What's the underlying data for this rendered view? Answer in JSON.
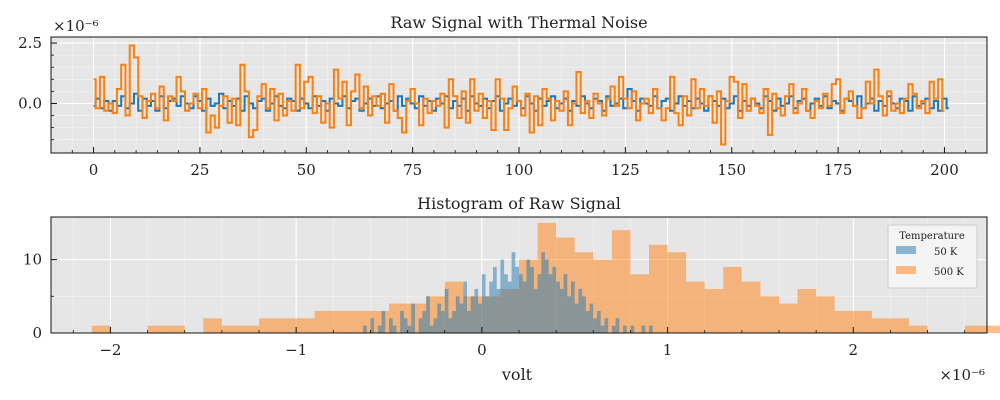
{
  "chart_data": [
    {
      "type": "line",
      "title": "Raw Signal with Thermal Noise",
      "xlabel": "",
      "ylabel": "",
      "xlim": [
        -10,
        210
      ],
      "ylim": [
        -2.05,
        2.75
      ],
      "offset_text": "×10⁻⁶",
      "xticks": [
        0,
        25,
        50,
        75,
        100,
        125,
        150,
        175,
        200
      ],
      "xtick_labels": [
        "0",
        "25",
        "50",
        "75",
        "100",
        "125",
        "150",
        "175",
        "200"
      ],
      "yticks": [
        0.0,
        2.5
      ],
      "ytick_labels": [
        "0.0",
        "2.5"
      ],
      "grid": true,
      "drawstyle": "steps-mid",
      "series": [
        {
          "color": "#1f77b4",
          "values": [
            -0.1,
            0.2,
            -0.2,
            0.1,
            -0.3,
            0.1,
            -0.1,
            0.3,
            -0.2,
            0.0,
            0.4,
            -0.3,
            0.2,
            -0.1,
            0.1,
            -0.3,
            0.3,
            -0.2,
            0.1,
            0.2,
            -0.1,
            0.3,
            0.0,
            -0.2,
            0.3,
            0.1,
            -0.3,
            0.2,
            -0.1,
            0.0,
            0.4,
            -0.2,
            0.1,
            -0.1,
            0.2,
            -0.3,
            0.3,
            0.0,
            -0.2,
            0.1,
            0.2,
            -0.3,
            0.0,
            0.3,
            -0.1,
            -0.2,
            0.2,
            0.1,
            -0.3,
            0.2,
            0.0,
            -0.2,
            0.3,
            -0.1,
            0.1,
            -0.3,
            0.2,
            0.0,
            -0.1,
            0.3,
            -0.2,
            0.1,
            0.2,
            -0.3,
            0.0,
            0.2,
            -0.1,
            0.3,
            -0.2,
            0.0,
            0.1,
            -0.3,
            0.3,
            -0.1,
            0.2,
            0.0,
            -0.2,
            0.3,
            -0.1,
            0.1,
            -0.3,
            0.2,
            0.0,
            0.3,
            -0.2,
            0.1,
            -0.1,
            0.2,
            -0.3,
            0.3,
            0.0,
            -0.1,
            0.2,
            -0.2,
            0.1,
            0.3,
            -0.3,
            0.0,
            0.2,
            -0.1,
            0.1,
            -0.2,
            0.3,
            0.0,
            -0.3,
            0.2,
            -0.1,
            0.1,
            0.3,
            -0.2,
            0.0,
            0.2,
            -0.3,
            0.1,
            -0.1,
            0.3,
            0.0,
            -0.2,
            0.2,
            0.1,
            -0.3,
            0.3,
            -0.1,
            0.0,
            0.2,
            -0.2,
            0.6,
            0.1,
            -0.3,
            0.2,
            0.0,
            -0.1,
            0.3,
            -0.2,
            0.1,
            0.2,
            -0.3,
            0.0,
            0.3,
            -0.1,
            0.1,
            -0.2,
            0.2,
            0.0,
            -0.3,
            0.3,
            0.1,
            -0.1,
            0.2,
            -0.2,
            0.0,
            0.3,
            -0.3,
            0.1,
            -0.1,
            0.2,
            0.0,
            -0.2,
            0.3,
            0.1,
            -0.3,
            0.2,
            -0.1,
            0.0,
            0.3,
            -0.2,
            0.1,
            0.2,
            -0.3,
            0.0,
            0.2,
            -0.1,
            0.3,
            -0.2,
            0.1,
            0.0,
            -0.3,
            0.2,
            0.1,
            -0.1,
            0.3,
            -0.2,
            0.0,
            0.2,
            -0.3,
            0.1,
            -0.1,
            0.3,
            0.0,
            -0.2,
            0.2,
            0.1,
            -0.3,
            0.3,
            -0.1,
            0.0,
            0.2,
            -0.2,
            0.1,
            -0.3,
            0.2,
            -0.2
          ]
        },
        {
          "color": "#ff7f0e",
          "values": [
            1.0,
            -0.2,
            1.1,
            -0.3,
            0.0,
            -0.4,
            0.6,
            1.6,
            -0.5,
            2.4,
            1.9,
            0.3,
            -0.6,
            0.1,
            0.4,
            -0.2,
            0.7,
            -0.7,
            0.3,
            0.1,
            1.1,
            0.5,
            -0.3,
            0.0,
            0.4,
            -0.2,
            0.6,
            -1.2,
            -0.5,
            -1.0,
            -0.1,
            0.3,
            -0.8,
            0.2,
            -0.9,
            1.6,
            0.5,
            -1.4,
            -1.1,
            0.3,
            0.8,
            -0.2,
            0.6,
            -0.7,
            0.4,
            -0.5,
            0.1,
            -0.3,
            1.6,
            -0.2,
            0.9,
            1.1,
            -0.4,
            0.3,
            -0.8,
            0.0,
            -1.0,
            1.4,
            0.2,
            0.9,
            -0.9,
            0.5,
            1.2,
            -0.2,
            0.7,
            -0.5,
            0.3,
            -0.1,
            0.4,
            -0.8,
            0.8,
            -0.3,
            -0.6,
            -1.2,
            0.1,
            0.6,
            0.0,
            -0.9,
            0.2,
            -0.4,
            0.1,
            -0.1,
            0.4,
            -1.0,
            1.0,
            0.3,
            -0.6,
            0.5,
            -0.8,
            1.0,
            -0.3,
            0.4,
            -0.6,
            0.1,
            -1.1,
            1.0,
            0.2,
            -1.1,
            -0.2,
            0.7,
            0.1,
            -0.5,
            0.4,
            -1.2,
            0.3,
            -0.9,
            0.6,
            0.2,
            -0.7,
            0.1,
            -0.3,
            0.5,
            -0.9,
            0.0,
            1.3,
            -0.4,
            0.1,
            -0.6,
            0.4,
            0.0,
            -0.5,
            0.2,
            0.7,
            -0.1,
            1.1,
            0.2,
            -0.2,
            0.5,
            -0.7,
            0.0,
            0.2,
            -0.4,
            0.6,
            -0.2,
            -0.7,
            -0.2,
            1.1,
            -0.4,
            -0.9,
            0.3,
            -0.5,
            1.0,
            -0.2,
            0.6,
            -0.1,
            0.3,
            -0.8,
            0.5,
            -1.7,
            0.1,
            1.1,
            0.9,
            -0.6,
            0.8,
            -0.3,
            0.2,
            -0.1,
            -0.4,
            0.6,
            -1.3,
            0.4,
            -0.2,
            -0.5,
            0.3,
            0.8,
            -0.4,
            0.0,
            0.6,
            -0.3,
            -0.6,
            0.1,
            -0.2,
            0.4,
            -0.1,
            0.8,
            1.0,
            -0.4,
            0.2,
            0.5,
            -0.1,
            -0.6,
            -0.2,
            0.9,
            0.0,
            1.4,
            0.3,
            -0.5,
            0.5,
            -0.3,
            0.0,
            -0.4,
            0.2,
            0.8,
            0.4,
            -0.2,
            0.1,
            -0.4,
            0.9,
            0.2,
            1.0,
            -0.3
          ]
        }
      ]
    },
    {
      "type": "bar",
      "title": "Histogram of Raw Signal",
      "xlabel": "volt",
      "ylabel": "",
      "xlim": [
        -2.32,
        2.72
      ],
      "ylim": [
        0,
        15.8
      ],
      "offset_text": "×10⁻⁶",
      "xticks": [
        -2,
        -1,
        0,
        1,
        2
      ],
      "xtick_labels": [
        "−2",
        "−1",
        "0",
        "1",
        "2"
      ],
      "yticks": [
        0,
        10
      ],
      "ytick_labels": [
        "0",
        "10"
      ],
      "grid": true,
      "legend": {
        "title": "Temperature",
        "placement": "right"
      },
      "series": [
        {
          "name": "50 K",
          "color": "#1f77b4",
          "alpha": 0.5,
          "bin_width": 0.02,
          "bin_start": -0.64,
          "counts": [
            1,
            0,
            2,
            0,
            1,
            3,
            0,
            2,
            1,
            0,
            3,
            2,
            1,
            4,
            0,
            2,
            3,
            5,
            1,
            2,
            4,
            3,
            6,
            2,
            3,
            5,
            4,
            7,
            3,
            5,
            6,
            4,
            8,
            5,
            7,
            9,
            6,
            10,
            8,
            7,
            11,
            9,
            8,
            7,
            10,
            9,
            6,
            8,
            11,
            10,
            8,
            9,
            7,
            6,
            8,
            5,
            7,
            4,
            6,
            5,
            3,
            4,
            2,
            3,
            1,
            2,
            0,
            1,
            2,
            0,
            1,
            0,
            1,
            0,
            0,
            1,
            0,
            1,
            0,
            0
          ]
        },
        {
          "name": "500 K",
          "color": "#ff7f0e",
          "alpha": 0.5,
          "bin_width": 0.1,
          "bin_start": -2.1,
          "counts": [
            1,
            0,
            0,
            1,
            1,
            0,
            2,
            1,
            1,
            2,
            2,
            2,
            3,
            3,
            3,
            3,
            4,
            4,
            5,
            7,
            5,
            5,
            6,
            10,
            15,
            13,
            11,
            10,
            14,
            8,
            12,
            11,
            7,
            6,
            9,
            7,
            5,
            4,
            6,
            5,
            3,
            3,
            2,
            2,
            1,
            0,
            0,
            1,
            1
          ]
        }
      ]
    }
  ]
}
